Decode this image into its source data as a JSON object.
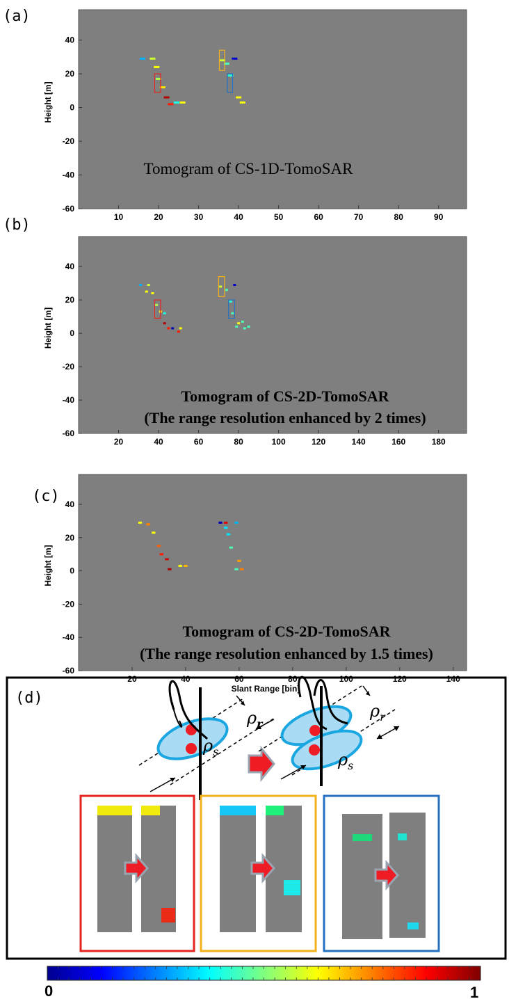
{
  "figure": {
    "panels": [
      {
        "letter": "(a)",
        "caption": [
          "Tomogram of CS-1D-TomoSAR"
        ]
      },
      {
        "letter": "(b)",
        "caption": [
          "Tomogram of CS-2D-TomoSAR",
          "(The range resolution enhanced by 2 times)"
        ]
      },
      {
        "letter": "(c)",
        "caption": [
          "Tomogram of CS-2D-TomoSAR",
          "(The range resolution enhanced by 1.5 times)"
        ]
      }
    ],
    "schematic": {
      "letter": "(d)",
      "rho_symbol": "ρ",
      "sub_r": "r",
      "sub_s": "s",
      "box_colors": {
        "red": "#e52420",
        "orange": "#f3b21b",
        "blue": "#2470c2"
      }
    },
    "colorbar": {
      "min_label": "0",
      "max_label": "1",
      "colormap": "jet"
    }
  },
  "chart_data": [
    {
      "type": "scatter",
      "title": "Tomogram of CS-1D-TomoSAR",
      "xlabel": "",
      "ylabel": "Height [m]",
      "xlim": [
        0,
        97
      ],
      "ylim": [
        -60,
        58
      ],
      "xticks": [
        10,
        20,
        30,
        40,
        50,
        60,
        70,
        80,
        90
      ],
      "yticks": [
        -60,
        -40,
        -20,
        0,
        20,
        40
      ],
      "background": "#7f7f7f",
      "points": [
        {
          "x": 16,
          "y": 29,
          "v": 0.3
        },
        {
          "x": 18.5,
          "y": 29,
          "v": 0.58
        },
        {
          "x": 19.5,
          "y": 24,
          "v": 0.62
        },
        {
          "x": 20,
          "y": 17,
          "v": 0.55
        },
        {
          "x": 21,
          "y": 12,
          "v": 0.65
        },
        {
          "x": 22,
          "y": 6,
          "v": 0.95
        },
        {
          "x": 23,
          "y": 2,
          "v": 0.85
        },
        {
          "x": 24.5,
          "y": 3,
          "v": 0.4
        },
        {
          "x": 26,
          "y": 3,
          "v": 0.62
        },
        {
          "x": 36,
          "y": 28,
          "v": 0.58
        },
        {
          "x": 37,
          "y": 26,
          "v": 0.45
        },
        {
          "x": 38,
          "y": 19,
          "v": 0.42
        },
        {
          "x": 39,
          "y": 29,
          "v": 0.08
        },
        {
          "x": 40,
          "y": 6,
          "v": 0.62
        },
        {
          "x": 41,
          "y": 3,
          "v": 0.62
        }
      ],
      "boxes": [
        {
          "x0": 19,
          "x1": 20.5,
          "y0": 9,
          "y1": 20,
          "color": "red"
        },
        {
          "x0": 35.2,
          "x1": 36.5,
          "y0": 22,
          "y1": 34,
          "color": "orange"
        },
        {
          "x0": 37.2,
          "x1": 38.5,
          "y0": 9,
          "y1": 20,
          "color": "blue"
        }
      ]
    },
    {
      "type": "scatter",
      "title": "Tomogram of CS-2D-TomoSAR (The range resolution enhanced by 2 times)",
      "xlabel": "",
      "ylabel": "Height [m]",
      "xlim": [
        0,
        194
      ],
      "ylim": [
        -60,
        58
      ],
      "xticks": [
        20,
        40,
        60,
        80,
        100,
        120,
        140,
        160,
        180
      ],
      "yticks": [
        -60,
        -40,
        -20,
        0,
        20,
        40
      ],
      "background": "#7f7f7f",
      "points": [
        {
          "x": 31,
          "y": 29,
          "v": 0.3
        },
        {
          "x": 35,
          "y": 29,
          "v": 0.58
        },
        {
          "x": 34,
          "y": 25,
          "v": 0.62
        },
        {
          "x": 37,
          "y": 24,
          "v": 0.62
        },
        {
          "x": 39,
          "y": 17,
          "v": 0.55
        },
        {
          "x": 41,
          "y": 13,
          "v": 0.65
        },
        {
          "x": 43,
          "y": 12,
          "v": 0.4
        },
        {
          "x": 43,
          "y": 6,
          "v": 0.95
        },
        {
          "x": 45,
          "y": 3,
          "v": 0.85
        },
        {
          "x": 47,
          "y": 3,
          "v": 0.05
        },
        {
          "x": 50,
          "y": 1,
          "v": 0.85
        },
        {
          "x": 51,
          "y": 3,
          "v": 0.62
        },
        {
          "x": 71,
          "y": 28,
          "v": 0.58
        },
        {
          "x": 74,
          "y": 26,
          "v": 0.45
        },
        {
          "x": 76,
          "y": 19,
          "v": 0.42
        },
        {
          "x": 77,
          "y": 12,
          "v": 0.45
        },
        {
          "x": 78,
          "y": 29,
          "v": 0.08
        },
        {
          "x": 80,
          "y": 6,
          "v": 0.62
        },
        {
          "x": 79,
          "y": 4,
          "v": 0.45
        },
        {
          "x": 82,
          "y": 7,
          "v": 0.45
        },
        {
          "x": 83,
          "y": 3,
          "v": 0.45
        },
        {
          "x": 85,
          "y": 4,
          "v": 0.45
        }
      ],
      "boxes": [
        {
          "x0": 38,
          "x1": 41,
          "y0": 9,
          "y1": 20,
          "color": "red"
        },
        {
          "x0": 70,
          "x1": 73,
          "y0": 22,
          "y1": 34,
          "color": "orange"
        },
        {
          "x0": 75,
          "x1": 78,
          "y0": 9,
          "y1": 20,
          "color": "blue"
        }
      ]
    },
    {
      "type": "scatter",
      "title": "Tomogram of CS-2D-TomoSAR (The range resolution enhanced by 1.5 times)",
      "xlabel": "Slant Range [bin]",
      "ylabel": "Height [m]",
      "xlim": [
        0,
        145
      ],
      "ylim": [
        -60,
        58
      ],
      "xticks": [
        20,
        40,
        60,
        80,
        100,
        120,
        140
      ],
      "yticks": [
        -60,
        -40,
        -20,
        0,
        20,
        40
      ],
      "background": "#7f7f7f",
      "points": [
        {
          "x": 23,
          "y": 29,
          "v": 0.62
        },
        {
          "x": 26,
          "y": 28,
          "v": 0.75
        },
        {
          "x": 28,
          "y": 23,
          "v": 0.62
        },
        {
          "x": 30,
          "y": 15,
          "v": 0.78
        },
        {
          "x": 31,
          "y": 10,
          "v": 0.85
        },
        {
          "x": 33,
          "y": 7,
          "v": 0.93
        },
        {
          "x": 34,
          "y": 1,
          "v": 0.96
        },
        {
          "x": 38,
          "y": 3,
          "v": 0.62
        },
        {
          "x": 40,
          "y": 3,
          "v": 0.7
        },
        {
          "x": 53,
          "y": 29,
          "v": 0.05
        },
        {
          "x": 55,
          "y": 29,
          "v": 0.9
        },
        {
          "x": 55,
          "y": 26,
          "v": 0.35
        },
        {
          "x": 56,
          "y": 22,
          "v": 0.35
        },
        {
          "x": 57,
          "y": 14,
          "v": 0.45
        },
        {
          "x": 59,
          "y": 29,
          "v": 0.3
        },
        {
          "x": 60,
          "y": 6,
          "v": 0.72
        },
        {
          "x": 59,
          "y": 1,
          "v": 0.45
        },
        {
          "x": 61,
          "y": 1,
          "v": 0.75
        }
      ],
      "boxes": []
    }
  ]
}
